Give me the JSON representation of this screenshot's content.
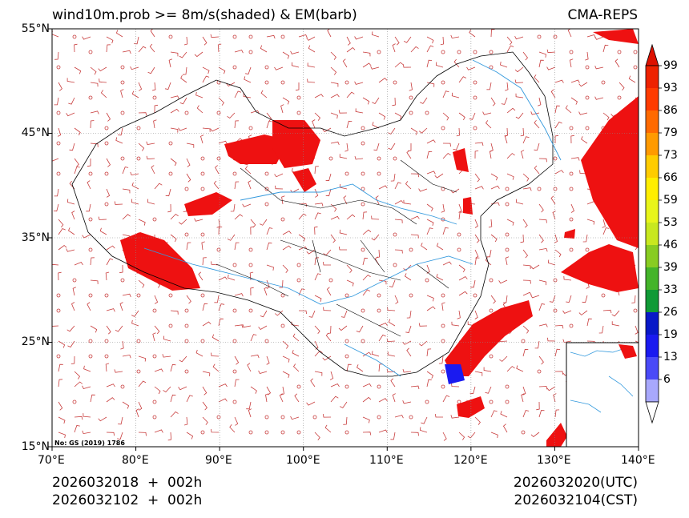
{
  "header": {
    "title": "wind10m.prob >= 8m/s(shaded) & EM(barb)",
    "model": "CMA-REPS"
  },
  "map": {
    "lat_labels": [
      "55°N",
      "45°N",
      "35°N",
      "25°N",
      "15°N"
    ],
    "lon_labels": [
      "70°E",
      "80°E",
      "90°E",
      "100°E",
      "110°E",
      "120°E",
      "130°E",
      "140°E"
    ],
    "approval_no": "No: GS (2019) 1786",
    "border_color": "#000000",
    "river_color": "#3399dd",
    "barb_color": "#c83c3c",
    "prob_color": "#ee1111"
  },
  "colorbar": {
    "levels": [
      "99",
      "93",
      "86",
      "79",
      "73",
      "66",
      "59",
      "53",
      "46",
      "39",
      "33",
      "26",
      "19",
      "13",
      "6"
    ],
    "colors": [
      "#ee2200",
      "#ff3b00",
      "#ff6a00",
      "#ff9a00",
      "#ffcc00",
      "#ffee00",
      "#e8f51a",
      "#c8e81f",
      "#88cc22",
      "#44b42a",
      "#109a36",
      "#0818c8",
      "#1a1af0",
      "#4a4af8",
      "#a8a8fc"
    ]
  },
  "footer": {
    "init_utc": "2026032018  +  002h",
    "init_cst": "2026032102  +  002h",
    "valid_utc": "2026032020(UTC)",
    "valid_cst": "2026032104(CST)"
  }
}
